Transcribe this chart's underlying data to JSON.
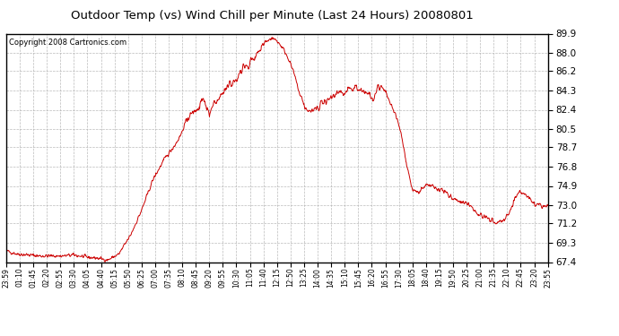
{
  "title": "Outdoor Temp (vs) Wind Chill per Minute (Last 24 Hours) 20080801",
  "copyright": "Copyright 2008 Cartronics.com",
  "line_color": "#cc0000",
  "background_color": "#ffffff",
  "plot_bg_color": "#ffffff",
  "ylim": [
    67.4,
    89.9
  ],
  "yticks": [
    67.4,
    69.3,
    71.2,
    73.0,
    74.9,
    76.8,
    78.7,
    80.5,
    82.4,
    84.3,
    86.2,
    88.0,
    89.9
  ],
  "xtick_labels": [
    "23:59",
    "01:10",
    "01:45",
    "02:20",
    "02:55",
    "03:30",
    "04:05",
    "04:40",
    "05:15",
    "05:50",
    "06:25",
    "07:00",
    "07:35",
    "08:10",
    "08:45",
    "09:20",
    "09:55",
    "10:30",
    "11:05",
    "11:40",
    "12:15",
    "12:50",
    "13:25",
    "14:00",
    "14:35",
    "15:10",
    "15:45",
    "16:20",
    "16:55",
    "17:30",
    "18:05",
    "18:40",
    "19:15",
    "19:50",
    "20:25",
    "21:00",
    "21:35",
    "22:10",
    "22:45",
    "23:20",
    "23:55"
  ],
  "grid_color": "#aaaaaa",
  "grid_style": "--"
}
